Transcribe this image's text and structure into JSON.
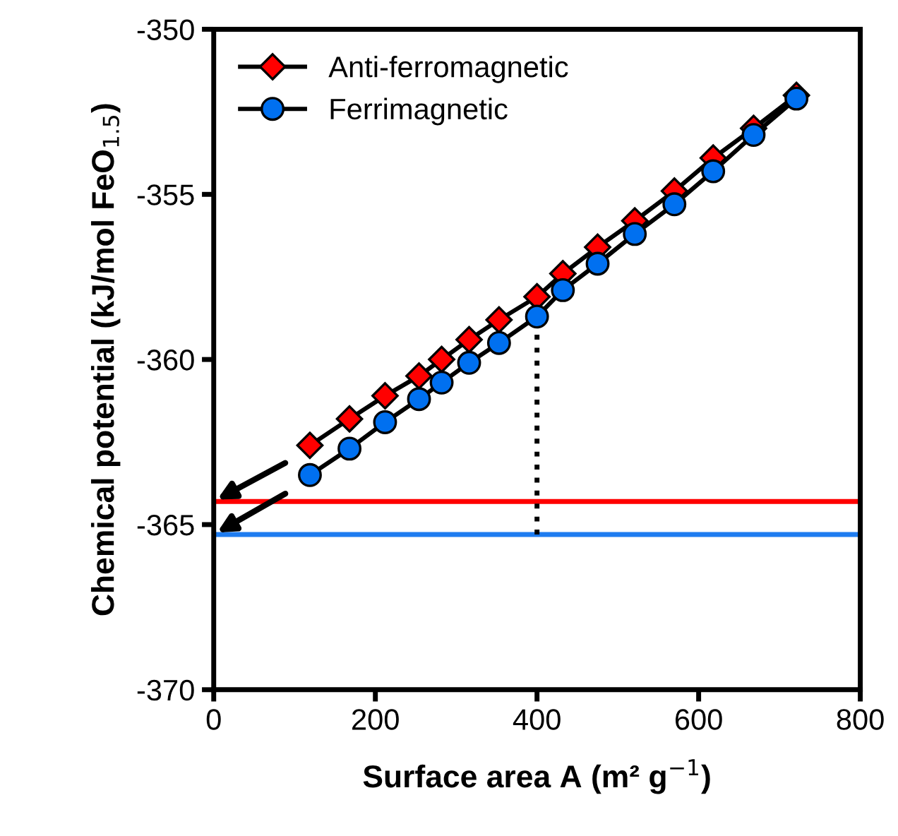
{
  "chart_data": {
    "type": "line",
    "xlabel": "Surface area A (m² g$^{−1}$)",
    "ylabel": "Chemical potential (kJ/mol FeO$_{1.5}$)",
    "xlim": [
      0,
      800
    ],
    "xticks": [
      0,
      200,
      400,
      600,
      800
    ],
    "ylim": [
      -370,
      -350
    ],
    "yticks": [
      -370,
      -365,
      -360,
      -355,
      -350
    ],
    "grid": false,
    "legend": "top left",
    "line_style": "solid",
    "series": [
      {
        "name": "Anti-ferromagnetic",
        "color": "#ff0000",
        "marker": "diamond",
        "x": [
          119,
          168,
          212,
          254,
          282,
          316,
          353,
          400,
          432,
          475,
          521,
          570,
          618,
          668,
          721
        ],
        "values": [
          -362.6,
          -361.8,
          -361.1,
          -360.5,
          -360.0,
          -359.4,
          -358.8,
          -358.1,
          -357.4,
          -356.6,
          -355.8,
          -354.9,
          -353.9,
          -353.0,
          -352.0
        ]
      },
      {
        "name": "Ferrimagnetic",
        "color": "#0070f0",
        "marker": "circle",
        "x": [
          119,
          168,
          212,
          254,
          282,
          316,
          353,
          400,
          432,
          475,
          521,
          570,
          618,
          668,
          721
        ],
        "values": [
          -363.5,
          -362.7,
          -361.9,
          -361.2,
          -360.7,
          -360.1,
          -359.5,
          -358.7,
          -357.9,
          -357.1,
          -356.2,
          -355.3,
          -354.3,
          -353.2,
          -352.1
        ]
      }
    ],
    "ref_lines": [
      {
        "axis": "y",
        "value": -364.3,
        "color": "#ff0000",
        "line_style": "solid"
      },
      {
        "axis": "y",
        "value": -365.3,
        "color": "#1e7cf0",
        "line_style": "solid"
      },
      {
        "axis": "x",
        "value": 400,
        "color": "#000000",
        "line_style": "dotted"
      }
    ]
  }
}
